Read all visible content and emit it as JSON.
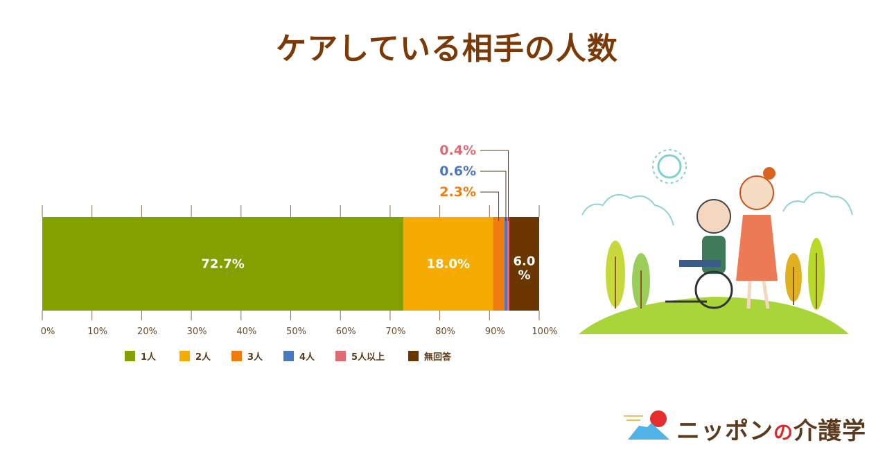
{
  "chart_data": {
    "type": "bar",
    "orientation": "horizontal-stacked",
    "title": "ケアしている相手の人数",
    "categories": [
      "1人",
      "2人",
      "3人",
      "4人",
      "5人以上",
      "無回答"
    ],
    "values": [
      72.7,
      18.0,
      2.3,
      0.6,
      0.4,
      6.0
    ],
    "labels": [
      "72.7%",
      "18.0%",
      "2.3%",
      "0.6%",
      "0.4%",
      "6.0%"
    ],
    "colors": [
      "#82a000",
      "#f5ab00",
      "#ee7d10",
      "#4a78c0",
      "#e06a74",
      "#6b3600"
    ],
    "xlim": [
      0,
      100
    ],
    "ticks": [
      "0%",
      "10%",
      "20%",
      "30%",
      "40%",
      "50%",
      "60%",
      "70%",
      "80%",
      "90%",
      "100%"
    ],
    "legend_position": "bottom"
  },
  "brand": {
    "name_a": "ニッポン",
    "name_no": "の",
    "name_b": "介護学"
  }
}
